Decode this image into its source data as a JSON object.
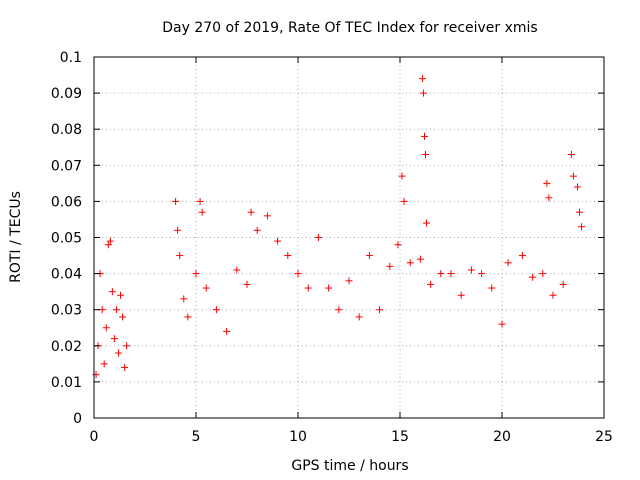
{
  "chart_data": {
    "type": "scatter",
    "title": "Day 270 of 2019, Rate Of TEC Index for receiver xmis",
    "xlabel": "GPS time / hours",
    "ylabel": "ROTI / TECUs",
    "xlim": [
      0,
      25
    ],
    "ylim": [
      0,
      0.1
    ],
    "x_ticks": [
      "0",
      "5",
      "10",
      "15",
      "20",
      "25"
    ],
    "y_ticks": [
      "0",
      "0.01",
      "0.02",
      "0.03",
      "0.04",
      "0.05",
      "0.06",
      "0.07",
      "0.08",
      "0.09",
      "0.1"
    ],
    "x_tick_values": [
      0,
      5,
      10,
      15,
      20,
      25
    ],
    "y_tick_values": [
      0,
      0.01,
      0.02,
      0.03,
      0.04,
      0.05,
      0.06,
      0.07,
      0.08,
      0.09,
      0.1
    ],
    "grid": true,
    "marker": "plus",
    "color": "#ff0000",
    "series": [
      {
        "name": "",
        "points": [
          [
            0.1,
            0.012
          ],
          [
            0.2,
            0.02
          ],
          [
            0.3,
            0.04
          ],
          [
            0.4,
            0.03
          ],
          [
            0.5,
            0.015
          ],
          [
            0.6,
            0.025
          ],
          [
            0.7,
            0.048
          ],
          [
            0.8,
            0.049
          ],
          [
            0.9,
            0.035
          ],
          [
            1.0,
            0.022
          ],
          [
            1.1,
            0.03
          ],
          [
            1.2,
            0.018
          ],
          [
            1.3,
            0.034
          ],
          [
            1.4,
            0.028
          ],
          [
            1.5,
            0.014
          ],
          [
            1.6,
            0.02
          ],
          [
            4.0,
            0.06
          ],
          [
            4.1,
            0.052
          ],
          [
            4.2,
            0.045
          ],
          [
            4.4,
            0.033
          ],
          [
            4.6,
            0.028
          ],
          [
            5.0,
            0.04
          ],
          [
            5.2,
            0.06
          ],
          [
            5.3,
            0.057
          ],
          [
            5.5,
            0.036
          ],
          [
            6.0,
            0.03
          ],
          [
            6.5,
            0.024
          ],
          [
            7.0,
            0.041
          ],
          [
            7.5,
            0.037
          ],
          [
            7.7,
            0.057
          ],
          [
            8.0,
            0.052
          ],
          [
            8.5,
            0.056
          ],
          [
            9.0,
            0.049
          ],
          [
            9.5,
            0.045
          ],
          [
            10.0,
            0.04
          ],
          [
            10.5,
            0.036
          ],
          [
            11.0,
            0.05
          ],
          [
            11.5,
            0.036
          ],
          [
            12.0,
            0.03
          ],
          [
            12.5,
            0.038
          ],
          [
            13.0,
            0.028
          ],
          [
            13.5,
            0.045
          ],
          [
            14.0,
            0.03
          ],
          [
            14.5,
            0.042
          ],
          [
            14.9,
            0.048
          ],
          [
            15.1,
            0.067
          ],
          [
            15.2,
            0.06
          ],
          [
            15.5,
            0.043
          ],
          [
            16.0,
            0.044
          ],
          [
            16.1,
            0.094
          ],
          [
            16.15,
            0.09
          ],
          [
            16.2,
            0.078
          ],
          [
            16.25,
            0.073
          ],
          [
            16.3,
            0.054
          ],
          [
            16.5,
            0.037
          ],
          [
            17.0,
            0.04
          ],
          [
            17.5,
            0.04
          ],
          [
            18.0,
            0.034
          ],
          [
            18.5,
            0.041
          ],
          [
            19.0,
            0.04
          ],
          [
            19.5,
            0.036
          ],
          [
            20.0,
            0.026
          ],
          [
            20.3,
            0.043
          ],
          [
            21.0,
            0.045
          ],
          [
            21.5,
            0.039
          ],
          [
            22.0,
            0.04
          ],
          [
            22.2,
            0.065
          ],
          [
            22.3,
            0.061
          ],
          [
            22.5,
            0.034
          ],
          [
            23.0,
            0.037
          ],
          [
            23.4,
            0.073
          ],
          [
            23.5,
            0.067
          ],
          [
            23.7,
            0.064
          ],
          [
            23.8,
            0.057
          ],
          [
            23.9,
            0.053
          ]
        ]
      }
    ]
  }
}
